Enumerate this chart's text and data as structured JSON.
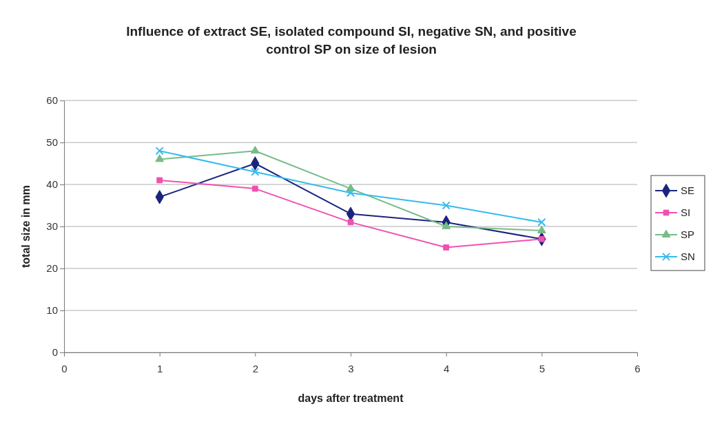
{
  "chart_data": {
    "type": "line",
    "title": "Influence of extract SE, isolated compound SI, negative SN, and positive control SP on size of lesion",
    "xlabel": "days after treatment",
    "ylabel": "total size in mm",
    "x": [
      1,
      2,
      3,
      4,
      5
    ],
    "xlim": [
      0,
      6
    ],
    "xticks": [
      0,
      1,
      2,
      3,
      4,
      5,
      6
    ],
    "ylim": [
      0,
      60
    ],
    "yticks": [
      0,
      10,
      20,
      30,
      40,
      50,
      60
    ],
    "grid": "y",
    "legend": "right",
    "series": [
      {
        "name": "SE",
        "color": "#1a237e",
        "marker": "diamond",
        "values": [
          37,
          45,
          33,
          31,
          27
        ]
      },
      {
        "name": "SI",
        "color": "#f050b0",
        "marker": "square",
        "values": [
          41,
          39,
          31,
          25,
          27
        ]
      },
      {
        "name": "SP",
        "color": "#77bb88",
        "marker": "triangle",
        "values": [
          46,
          48,
          39,
          30,
          29
        ]
      },
      {
        "name": "SN",
        "color": "#33bbee",
        "marker": "cross",
        "values": [
          48,
          43,
          38,
          35,
          31
        ]
      }
    ]
  }
}
